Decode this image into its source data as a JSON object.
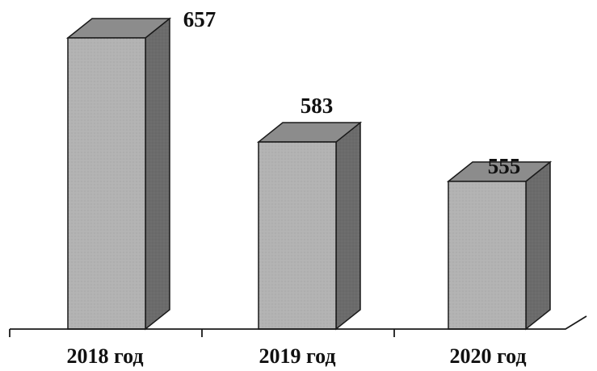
{
  "chart_data": {
    "type": "bar",
    "categories": [
      "2018 год",
      "2019 год",
      "2020 год"
    ],
    "values": [
      657,
      583,
      555
    ],
    "title": "",
    "xlabel": "",
    "ylabel": "",
    "ylim": [
      450,
      670
    ],
    "grid": false,
    "legend": "none",
    "style": "3d-column",
    "colors": {
      "front": "#b3b3b3",
      "top": "#8c8c8c",
      "side": "#6b6b6b",
      "outline": "#1a1a1a",
      "axis": "#1a1a1a"
    }
  }
}
